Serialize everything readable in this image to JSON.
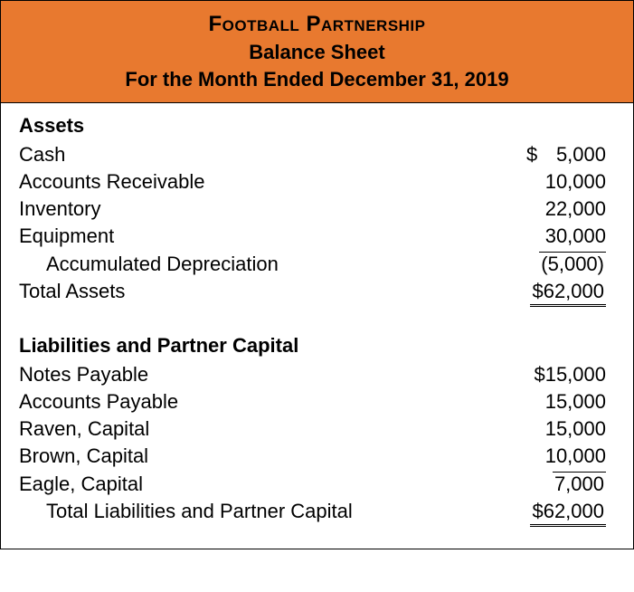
{
  "header": {
    "company": "Football Partnership",
    "title": "Balance Sheet",
    "period": "For the Month Ended December 31, 2019"
  },
  "assets": {
    "section_title": "Assets",
    "rows": [
      {
        "label": "Cash",
        "value": "5,000",
        "currency": "$",
        "indent": false
      },
      {
        "label": "Accounts Receivable",
        "value": "10,000",
        "currency": "",
        "indent": false
      },
      {
        "label": "Inventory",
        "value": "22,000",
        "currency": "",
        "indent": false
      },
      {
        "label": "Equipment",
        "value": "30,000",
        "currency": "",
        "indent": false
      },
      {
        "label": "Accumulated Depreciation",
        "value": "(5,000)",
        "currency": "",
        "indent": true
      }
    ],
    "total": {
      "label": "Total Assets",
      "value": "62,000",
      "currency": "$"
    }
  },
  "liabilities": {
    "section_title": "Liabilities and Partner Capital",
    "rows": [
      {
        "label": "Notes Payable",
        "value": "15,000",
        "currency": "$",
        "indent": false
      },
      {
        "label": "Accounts Payable",
        "value": "15,000",
        "currency": "",
        "indent": false
      },
      {
        "label": "Raven, Capital",
        "value": "15,000",
        "currency": "",
        "indent": false
      },
      {
        "label": "Brown, Capital",
        "value": "10,000",
        "currency": "",
        "indent": false
      },
      {
        "label": "Eagle, Capital",
        "value": "7,000",
        "currency": "",
        "indent": false
      }
    ],
    "total": {
      "label": "Total Liabilities and Partner Capital",
      "value": "62,000",
      "currency": "$"
    }
  },
  "style": {
    "header_bg": "#e8792f",
    "border_color": "#000000",
    "text_color": "#000000",
    "body_fontsize": 22,
    "title_fontsize": 24
  }
}
